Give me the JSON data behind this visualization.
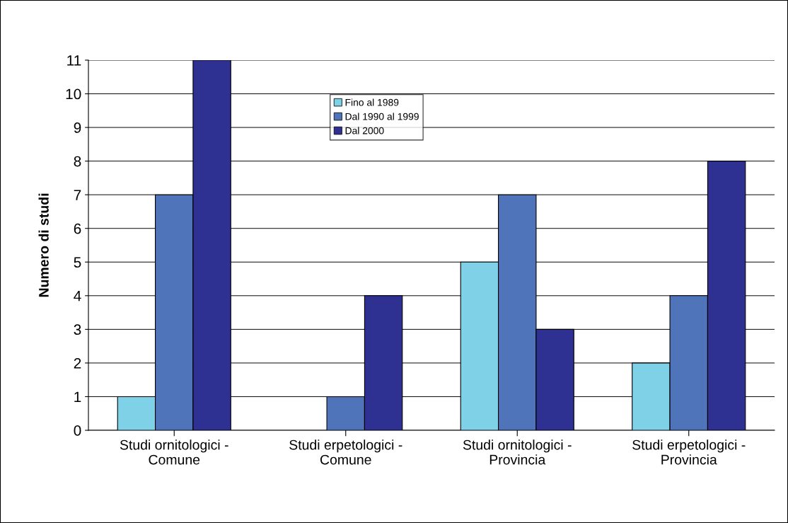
{
  "chart_data": {
    "type": "bar",
    "ylabel": "Numero di studi",
    "categories": [
      "Studi ornitologici -\nComune",
      "Studi erpetologici -\nComune",
      "Studi ornitologici -\nProvincia",
      "Studi erpetologici -\nProvincia"
    ],
    "series": [
      {
        "name": "Fino al 1989",
        "color": "#7fd1e8",
        "values": [
          1,
          0,
          5,
          2
        ]
      },
      {
        "name": "Dal 1990 al 1999",
        "color": "#4f74b9",
        "values": [
          7,
          1,
          7,
          4
        ]
      },
      {
        "name": "Dal 2000",
        "color": "#2e3192",
        "values": [
          11,
          4,
          3,
          8
        ]
      }
    ],
    "ylim": [
      0,
      11
    ],
    "yticks": [
      0,
      1,
      2,
      3,
      4,
      5,
      6,
      7,
      8,
      9,
      10,
      11
    ],
    "grid": "y",
    "legend": "top"
  }
}
